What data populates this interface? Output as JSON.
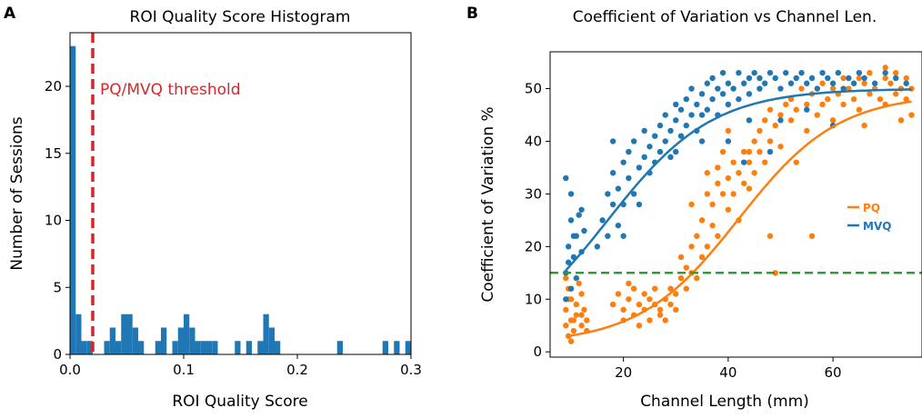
{
  "figure": {
    "panel_a_letter": "A",
    "panel_b_letter": "B"
  },
  "chart_data": [
    {
      "type": "bar",
      "subtype": "histogram",
      "title": "ROI Quality Score Histogram",
      "xlabel": "ROI Quality Score",
      "ylabel": "Number of Sessions",
      "xlim": [
        0,
        0.3
      ],
      "ylim": [
        0,
        24
      ],
      "xticks": [
        "0.0",
        "0.1",
        "0.2",
        "0.3"
      ],
      "xtick_values": [
        0,
        0.1,
        0.2,
        0.3
      ],
      "yticks": [
        "0",
        "5",
        "10",
        "15",
        "20"
      ],
      "ytick_values": [
        0,
        5,
        10,
        15,
        20
      ],
      "bin_width": 0.005,
      "bin_starts": [
        0.0,
        0.005,
        0.01,
        0.015,
        0.03,
        0.035,
        0.04,
        0.045,
        0.05,
        0.055,
        0.06,
        0.075,
        0.08,
        0.09,
        0.095,
        0.1,
        0.105,
        0.11,
        0.115,
        0.12,
        0.125,
        0.145,
        0.155,
        0.165,
        0.17,
        0.175,
        0.18,
        0.235,
        0.275,
        0.285,
        0.295
      ],
      "counts": [
        23,
        3,
        1,
        1,
        1,
        2,
        1,
        3,
        3,
        2,
        1,
        1,
        2,
        1,
        2,
        3,
        2,
        1,
        1,
        1,
        1,
        1,
        1,
        1,
        3,
        2,
        1,
        1,
        1,
        1,
        1
      ],
      "bar_color": "#1f77b4",
      "threshold": {
        "x": 0.02,
        "label": "PQ/MVQ threshold",
        "color": "#d62728"
      }
    },
    {
      "type": "scatter",
      "title": "Coefficient of Variation vs Channel Len.",
      "xlabel": "Channel Length (mm)",
      "ylabel": "Coefficient of Variation %",
      "xlim": [
        6,
        77
      ],
      "ylim": [
        -1,
        57
      ],
      "xticks": [
        "20",
        "40",
        "60"
      ],
      "xtick_values": [
        20,
        40,
        60
      ],
      "yticks": [
        "0",
        "10",
        "20",
        "30",
        "40",
        "50"
      ],
      "ytick_values": [
        0,
        10,
        20,
        30,
        40,
        50
      ],
      "legend_position": "center-right",
      "hline": {
        "y": 15,
        "color": "#2ca02c",
        "style": "dashed"
      },
      "series": [
        {
          "name": "PQ",
          "color": "#ff7f0e",
          "fit": {
            "model": "sigmoid",
            "ymin": 1.5,
            "ymax": 49,
            "x0": 42,
            "k": 0.105
          },
          "points": [
            [
              9,
              8
            ],
            [
              9,
              5
            ],
            [
              9.5,
              12
            ],
            [
              10,
              6
            ],
            [
              10,
              10
            ],
            [
              10.5,
              4
            ],
            [
              11,
              7
            ],
            [
              11,
              9
            ],
            [
              12,
              5
            ],
            [
              12,
              11
            ],
            [
              12.5,
              8
            ],
            [
              13,
              6
            ],
            [
              13,
              4
            ],
            [
              9,
              14
            ],
            [
              9.5,
              3
            ],
            [
              11.5,
              13
            ],
            [
              10,
              2
            ],
            [
              12,
              7
            ],
            [
              9.5,
              10
            ],
            [
              10.5,
              6
            ],
            [
              18,
              9
            ],
            [
              19,
              11
            ],
            [
              20,
              8
            ],
            [
              20,
              6
            ],
            [
              21,
              10
            ],
            [
              22,
              7
            ],
            [
              22,
              12
            ],
            [
              23,
              9
            ],
            [
              24,
              8
            ],
            [
              24,
              11
            ],
            [
              25,
              6
            ],
            [
              25,
              10
            ],
            [
              26,
              9
            ],
            [
              26,
              12
            ],
            [
              27,
              8
            ],
            [
              27,
              7
            ],
            [
              28,
              10
            ],
            [
              29,
              9
            ],
            [
              29,
              12
            ],
            [
              30,
              11
            ],
            [
              30,
              8
            ],
            [
              23,
              5
            ],
            [
              21,
              13
            ],
            [
              28,
              6
            ],
            [
              31,
              14
            ],
            [
              31,
              18
            ],
            [
              32,
              12
            ],
            [
              32,
              16
            ],
            [
              33,
              20
            ],
            [
              33,
              15
            ],
            [
              34,
              22
            ],
            [
              34,
              14
            ],
            [
              35,
              25
            ],
            [
              35,
              18
            ],
            [
              36,
              30
            ],
            [
              36,
              20
            ],
            [
              37,
              28
            ],
            [
              37,
              24
            ],
            [
              38,
              32
            ],
            [
              38,
              35
            ],
            [
              38,
              22
            ],
            [
              39,
              30
            ],
            [
              39,
              38
            ],
            [
              40,
              27
            ],
            [
              40,
              33
            ],
            [
              40,
              42
            ],
            [
              41,
              30
            ],
            [
              41,
              36
            ],
            [
              42,
              34
            ],
            [
              42,
              25
            ],
            [
              43,
              38
            ],
            [
              43,
              32
            ],
            [
              44,
              31
            ],
            [
              44,
              36
            ],
            [
              45,
              40
            ],
            [
              45,
              34
            ],
            [
              46,
              38
            ],
            [
              46,
              42
            ],
            [
              47,
              44
            ],
            [
              47,
              36
            ],
            [
              48,
              40
            ],
            [
              48,
              46
            ],
            [
              49,
              43
            ],
            [
              50,
              45
            ],
            [
              50,
              39
            ],
            [
              51,
              47
            ],
            [
              52,
              44
            ],
            [
              52,
              48
            ],
            [
              53,
              46
            ],
            [
              54,
              50
            ],
            [
              55,
              42
            ],
            [
              55,
              47
            ],
            [
              56,
              49
            ],
            [
              57,
              45
            ],
            [
              58,
              51
            ],
            [
              58,
              47
            ],
            [
              59,
              48
            ],
            [
              60,
              50
            ],
            [
              60,
              44
            ],
            [
              61,
              49
            ],
            [
              62,
              52
            ],
            [
              62,
              47
            ],
            [
              63,
              50
            ],
            [
              64,
              48
            ],
            [
              65,
              52
            ],
            [
              65,
              46
            ],
            [
              66,
              51
            ],
            [
              67,
              49
            ],
            [
              67,
              53
            ],
            [
              68,
              50
            ],
            [
              69,
              48
            ],
            [
              70,
              52
            ],
            [
              70,
              47
            ],
            [
              71,
              51
            ],
            [
              72,
              49
            ],
            [
              72,
              53
            ],
            [
              73,
              50
            ],
            [
              74,
              48
            ],
            [
              74,
              52
            ],
            [
              75,
              45
            ],
            [
              75,
              50
            ],
            [
              56,
              22
            ],
            [
              48,
              22
            ],
            [
              49,
              15
            ],
            [
              53,
              36
            ],
            [
              44,
              38
            ],
            [
              33,
              28
            ],
            [
              36,
              34
            ],
            [
              66,
              43
            ],
            [
              70,
              54
            ],
            [
              73,
              44
            ]
          ]
        },
        {
          "name": "MVQ",
          "color": "#1f77b4",
          "fit": {
            "model": "sigmoid",
            "ymin": 0,
            "ymax": 50,
            "x0": 17,
            "k": 0.1
          },
          "points": [
            [
              9,
              10
            ],
            [
              9,
              15
            ],
            [
              9.5,
              20
            ],
            [
              10,
              25
            ],
            [
              10,
              12
            ],
            [
              10.5,
              18
            ],
            [
              11,
              22
            ],
            [
              11,
              14
            ],
            [
              12,
              27
            ],
            [
              12,
              19
            ],
            [
              9,
              33
            ],
            [
              10,
              30
            ],
            [
              11.5,
              26
            ],
            [
              12.5,
              23
            ],
            [
              9.5,
              17
            ],
            [
              10.5,
              22
            ],
            [
              15,
              20
            ],
            [
              16,
              25
            ],
            [
              17,
              22
            ],
            [
              17,
              30
            ],
            [
              18,
              28
            ],
            [
              18,
              34
            ],
            [
              19,
              24
            ],
            [
              19,
              31
            ],
            [
              20,
              36
            ],
            [
              20,
              28
            ],
            [
              21,
              33
            ],
            [
              21,
              38
            ],
            [
              22,
              30
            ],
            [
              22,
              40
            ],
            [
              23,
              35
            ],
            [
              23,
              28
            ],
            [
              24,
              37
            ],
            [
              24,
              42
            ],
            [
              25,
              34
            ],
            [
              25,
              39
            ],
            [
              26,
              41
            ],
            [
              26,
              36
            ],
            [
              27,
              43
            ],
            [
              27,
              38
            ],
            [
              28,
              40
            ],
            [
              28,
              45
            ],
            [
              29,
              42
            ],
            [
              29,
              37
            ],
            [
              30,
              44
            ],
            [
              30,
              47
            ],
            [
              31,
              41
            ],
            [
              31,
              46
            ],
            [
              32,
              48
            ],
            [
              32,
              43
            ],
            [
              33,
              45
            ],
            [
              33,
              50
            ],
            [
              34,
              47
            ],
            [
              34,
              42
            ],
            [
              35,
              49
            ],
            [
              35,
              45
            ],
            [
              36,
              51
            ],
            [
              36,
              46
            ],
            [
              37,
              48
            ],
            [
              37,
              52
            ],
            [
              38,
              50
            ],
            [
              38,
              45
            ],
            [
              39,
              49
            ],
            [
              39,
              53
            ],
            [
              40,
              47
            ],
            [
              40,
              51
            ],
            [
              41,
              50
            ],
            [
              42,
              53
            ],
            [
              42,
              48
            ],
            [
              43,
              51
            ],
            [
              44,
              52
            ],
            [
              44,
              49
            ],
            [
              45,
              53
            ],
            [
              46,
              50
            ],
            [
              46,
              52
            ],
            [
              47,
              51
            ],
            [
              48,
              53
            ],
            [
              49,
              52
            ],
            [
              50,
              50
            ],
            [
              51,
              53
            ],
            [
              52,
              51
            ],
            [
              53,
              52
            ],
            [
              54,
              53
            ],
            [
              55,
              51
            ],
            [
              56,
              52
            ],
            [
              57,
              50
            ],
            [
              58,
              53
            ],
            [
              59,
              52
            ],
            [
              60,
              51
            ],
            [
              61,
              53
            ],
            [
              62,
              50
            ],
            [
              63,
              52
            ],
            [
              64,
              51
            ],
            [
              65,
              53
            ],
            [
              66,
              52
            ],
            [
              68,
              51
            ],
            [
              70,
              53
            ],
            [
              72,
              52
            ],
            [
              74,
              51
            ],
            [
              40,
              40
            ],
            [
              43,
              36
            ],
            [
              35,
              40
            ],
            [
              30,
              38
            ],
            [
              18,
              40
            ],
            [
              20,
              22
            ],
            [
              50,
              44
            ],
            [
              55,
              46
            ],
            [
              60,
              43
            ],
            [
              48,
              38
            ],
            [
              44,
              44
            ]
          ]
        }
      ]
    }
  ]
}
